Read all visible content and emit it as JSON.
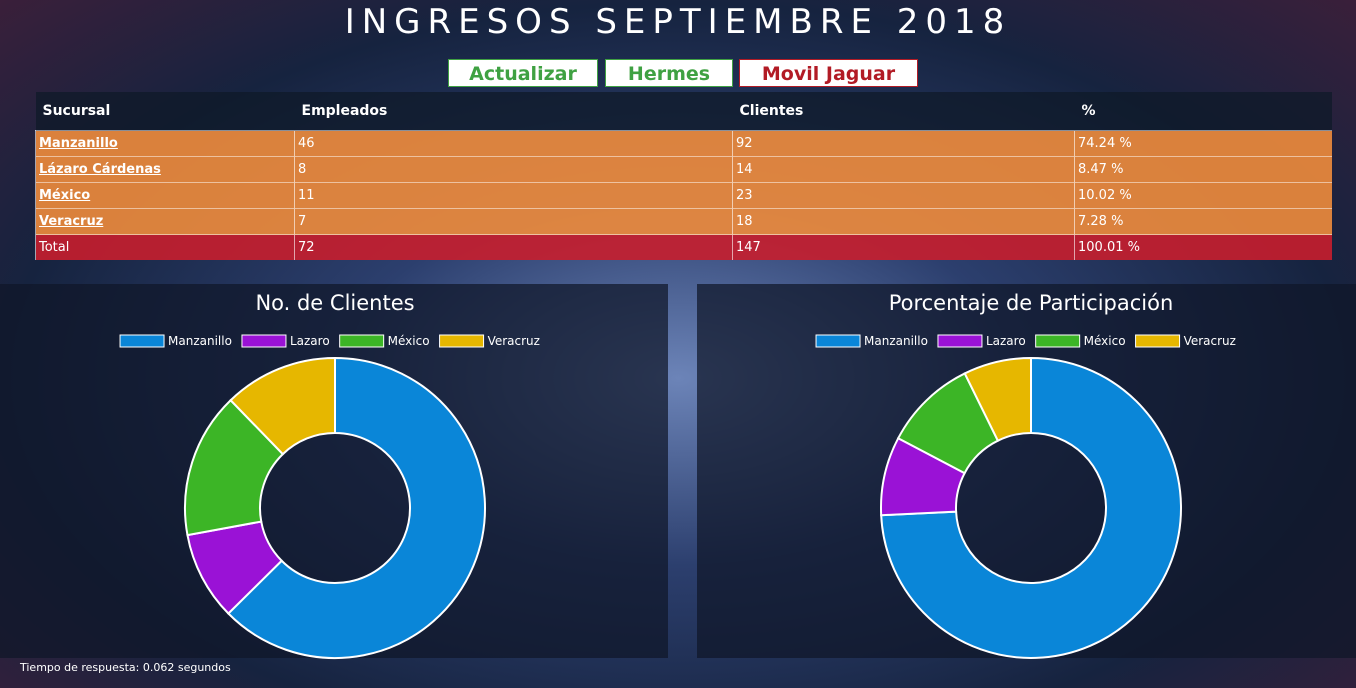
{
  "header": {
    "title": "INGRESOS SEPTIEMBRE 2018"
  },
  "buttons": [
    "Actualizar",
    "Hermes",
    "Movil Jaguar"
  ],
  "table": {
    "columns": [
      "Sucursal",
      "Empleados",
      "Clientes",
      "%"
    ],
    "rows": [
      [
        "Manzanillo",
        "46",
        "92",
        "74.24 %"
      ],
      [
        "Lázaro Cárdenas",
        "8",
        "14",
        "8.47 %"
      ],
      [
        "México",
        "11",
        "23",
        "10.02 %"
      ],
      [
        "Veracruz",
        "7",
        "18",
        "7.28 %"
      ]
    ],
    "total": [
      "Total",
      "72",
      "147",
      "100.01 %"
    ]
  },
  "chart_data": [
    {
      "type": "doughnut",
      "title": "No. de Clientes",
      "categories": [
        "Manzanillo",
        "Lazaro",
        "México",
        "Veracruz"
      ],
      "values": [
        92,
        14,
        23,
        18
      ],
      "colors": [
        "#0a86d8",
        "#9a12d6",
        "#3cb526",
        "#e6b700"
      ]
    },
    {
      "type": "doughnut",
      "title": "Porcentaje de Participación",
      "categories": [
        "Manzanillo",
        "Lazaro",
        "México",
        "Veracruz"
      ],
      "values": [
        74.24,
        8.47,
        10.02,
        7.28
      ],
      "colors": [
        "#0a86d8",
        "#9a12d6",
        "#3cb526",
        "#e6b700"
      ]
    }
  ],
  "footer": "Tiempo de respuesta: 0.062 segundos"
}
